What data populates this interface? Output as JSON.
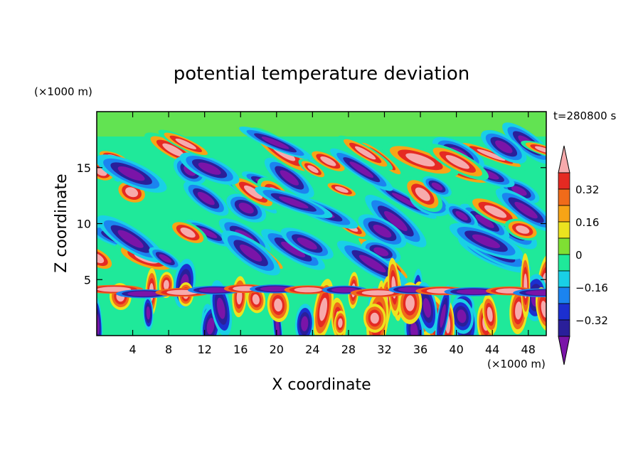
{
  "chart_data": {
    "type": "heatmap",
    "title": "potential temperature deviation",
    "xlabel": "X coordinate",
    "ylabel": "Z coordinate",
    "x_unit": "(×1000 m)",
    "y_unit": "(×1000 m)",
    "time_label": "t=280800 s",
    "xlim": [
      0,
      50
    ],
    "ylim": [
      0,
      20
    ],
    "x_ticks": [
      4,
      8,
      12,
      16,
      20,
      24,
      28,
      32,
      36,
      40,
      44,
      48
    ],
    "y_ticks": [
      5,
      10,
      15
    ],
    "colorbar": {
      "levels": [
        -0.4,
        -0.32,
        -0.24,
        -0.16,
        -0.08,
        0,
        0.08,
        0.16,
        0.24,
        0.32,
        0.4
      ],
      "labeled_levels": [
        0.32,
        0.16,
        0,
        -0.16,
        -0.32
      ],
      "tick_labels": [
        "0.32",
        "0.16",
        "0",
        "−0.16",
        "−0.32"
      ],
      "colors": [
        "#7a14a8",
        "#2a1f9a",
        "#1c2fd0",
        "#1b84f0",
        "#19d0e6",
        "#1fe99a",
        "#7fe033",
        "#ece31f",
        "#f7a416",
        "#f06b1a",
        "#e52a22",
        "#f7aaac"
      ],
      "extend": "both"
    }
  }
}
